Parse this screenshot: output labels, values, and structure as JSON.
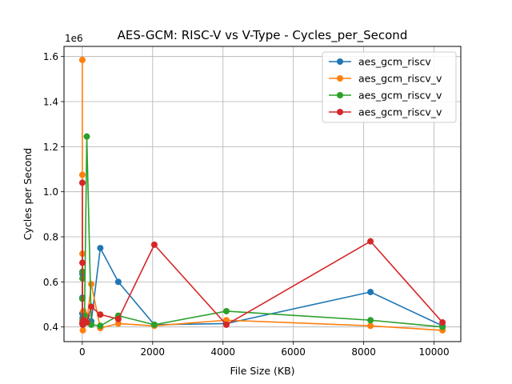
{
  "chart_data": {
    "type": "line",
    "title": "AES-GCM: RISC-V vs V-Type - Cycles_per_Second",
    "xlabel": "File Size (KB)",
    "ylabel": "Cycles per Second",
    "y_offset_label": "1e6",
    "xlim": [
      -520,
      10760
    ],
    "ylim": [
      0.335,
      1.645
    ],
    "x_ticks": [
      0,
      2000,
      4000,
      6000,
      8000,
      10000
    ],
    "y_ticks": [
      0.4,
      0.6,
      0.8,
      1.0,
      1.2,
      1.4,
      1.6
    ],
    "grid": true,
    "legend_position": "top-right",
    "series": [
      {
        "name": "aes_gcm_riscv",
        "color": "#1f77b4",
        "x": [
          1,
          2,
          4,
          8,
          16,
          32,
          64,
          128,
          256,
          512,
          1024,
          2048,
          4096,
          8192,
          10240
        ],
        "y": [
          0.46,
          0.53,
          0.635,
          0.44,
          0.41,
          0.42,
          0.43,
          0.45,
          0.425,
          0.75,
          0.6,
          0.41,
          0.415,
          0.555,
          0.405
        ]
      },
      {
        "name": "aes_gcm_riscv_v",
        "color": "#ff7f0e",
        "x": [
          1,
          2,
          4,
          8,
          16,
          32,
          64,
          128,
          256,
          512,
          1024,
          2048,
          4096,
          8192,
          10240
        ],
        "y": [
          1.585,
          1.075,
          0.725,
          0.43,
          0.385,
          0.47,
          0.455,
          0.42,
          0.59,
          0.395,
          0.415,
          0.405,
          0.43,
          0.405,
          0.385
        ]
      },
      {
        "name": "aes_gcm_riscv_v",
        "color": "#2ca02c",
        "x": [
          1,
          2,
          4,
          8,
          16,
          32,
          64,
          128,
          256,
          512,
          1024,
          2048,
          4096,
          8192,
          10240
        ],
        "y": [
          0.525,
          0.645,
          0.615,
          0.43,
          0.41,
          0.415,
          0.45,
          1.245,
          0.41,
          0.405,
          0.45,
          0.41,
          0.47,
          0.43,
          0.4
        ]
      },
      {
        "name": "aes_gcm_riscv_v",
        "color": "#d62728",
        "x": [
          1,
          2,
          4,
          8,
          16,
          32,
          64,
          128,
          256,
          512,
          1024,
          2048,
          4096,
          8192,
          10240
        ],
        "y": [
          0.415,
          1.04,
          0.685,
          0.42,
          0.41,
          0.43,
          0.425,
          0.42,
          0.49,
          0.455,
          0.435,
          0.765,
          0.41,
          0.78,
          0.42
        ]
      }
    ]
  }
}
